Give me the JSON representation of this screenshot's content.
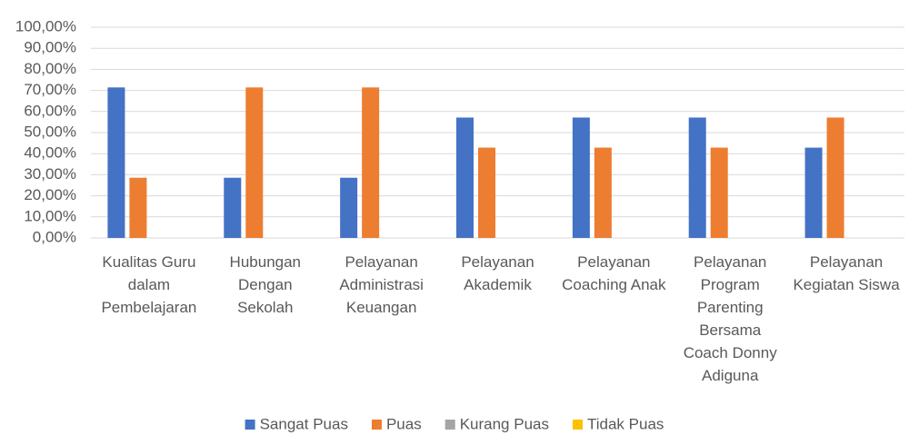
{
  "chart_data": {
    "type": "bar",
    "categories": [
      "Kualitas Guru dalam Pembelajaran",
      "Hubungan Dengan Sekolah",
      "Pelayanan Administrasi Keuangan",
      "Pelayanan Akademik",
      "Pelayanan Coaching Anak",
      "Pelayanan Program Parenting Bersama Coach Donny Adiguna",
      "Pelayanan Kegiatan Siswa"
    ],
    "series": [
      {
        "name": "Sangat Puas",
        "color": "#4472c4",
        "values": [
          71.43,
          28.57,
          28.57,
          57.14,
          57.14,
          57.14,
          42.86
        ]
      },
      {
        "name": "Puas",
        "color": "#ed7d31",
        "values": [
          28.57,
          71.43,
          71.43,
          42.86,
          42.86,
          42.86,
          57.14
        ]
      },
      {
        "name": "Kurang Puas",
        "color": "#a5a5a5",
        "values": [
          0,
          0,
          0,
          0,
          0,
          0,
          0
        ]
      },
      {
        "name": "Tidak Puas",
        "color": "#ffc000",
        "values": [
          0,
          0,
          0,
          0,
          0,
          0,
          0
        ]
      }
    ],
    "ylim": [
      0,
      100
    ],
    "yticks": [
      {
        "value": 0,
        "label": "0,00%"
      },
      {
        "value": 10,
        "label": "10,00%"
      },
      {
        "value": 20,
        "label": "20,00%"
      },
      {
        "value": 30,
        "label": "30,00%"
      },
      {
        "value": 40,
        "label": "40,00%"
      },
      {
        "value": 50,
        "label": "50,00%"
      },
      {
        "value": 60,
        "label": "60,00%"
      },
      {
        "value": 70,
        "label": "70,00%"
      },
      {
        "value": 80,
        "label": "80,00%"
      },
      {
        "value": 90,
        "label": "90,00%"
      },
      {
        "value": 100,
        "label": "100,00%"
      }
    ],
    "grid": true,
    "legend": "bottom"
  }
}
